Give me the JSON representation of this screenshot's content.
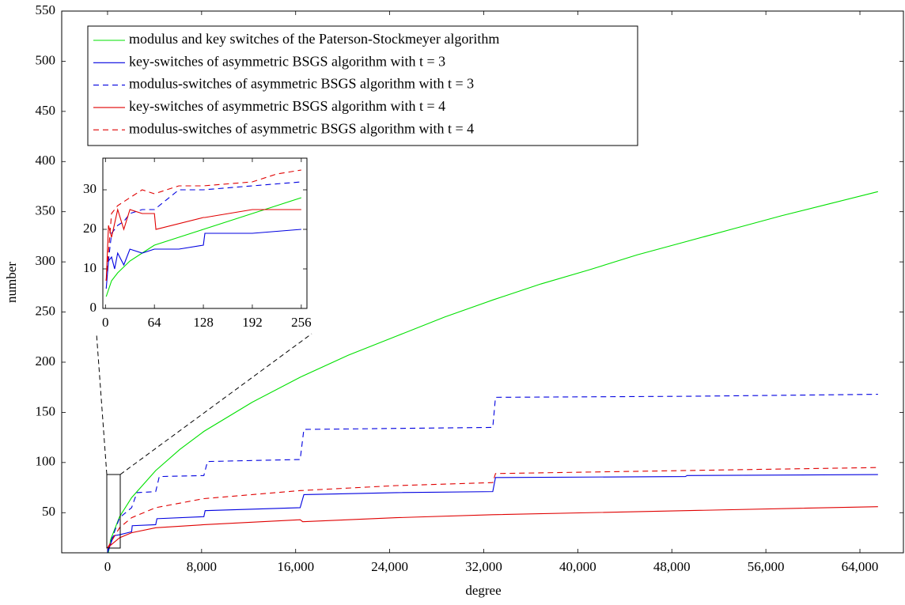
{
  "chart_data": [
    {
      "type": "line",
      "xlabel": "degree",
      "ylabel": "number",
      "xlim": [
        -3900,
        67700
      ],
      "ylim": [
        10,
        550
      ],
      "xticks": [
        0,
        {
          "value": 8000,
          "label": "8,000"
        },
        {
          "value": 16000,
          "label": "16,000"
        },
        {
          "value": 24000,
          "label": "24,000"
        },
        {
          "value": 32000,
          "label": "32,000"
        },
        {
          "value": 40000,
          "label": "40,000"
        },
        {
          "value": 48000,
          "label": "48,000"
        },
        {
          "value": 56000,
          "label": "56,000"
        },
        {
          "value": 64000,
          "label": "64,000"
        }
      ],
      "yticks": [
        50,
        100,
        150,
        200,
        250,
        300,
        350,
        400,
        450,
        500,
        550
      ],
      "legend": "upper left",
      "series": [
        {
          "name": "modulus and key switches of the Paterson-Stockmeyer algorithm",
          "color": "#00e000",
          "dash": false,
          "x": [
            1,
            256,
            1024,
            2048,
            4096,
            6144,
            8192,
            12288,
            16384,
            20480,
            24576,
            28672,
            32768,
            36864,
            40960,
            45056,
            49152,
            53248,
            57344,
            61440,
            65536
          ],
          "values": [
            5,
            23,
            46,
            65,
            92,
            113,
            131,
            160,
            185,
            207,
            226,
            245,
            262,
            278,
            292,
            307,
            320,
            333,
            346,
            358,
            370
          ]
        },
        {
          "name": "key-switches of asymmetric BSGS algorithm with t = 3",
          "color": "#0000e0",
          "dash": false,
          "x": [
            1,
            512,
            1024,
            2048,
            2100,
            4096,
            4200,
            8192,
            8300,
            16384,
            16700,
            24576,
            32768,
            33000,
            49152,
            49300,
            65536
          ],
          "values": [
            10,
            27,
            28,
            31,
            37,
            38,
            44,
            46,
            52,
            55,
            68,
            70,
            71,
            85,
            86,
            87,
            88
          ]
        },
        {
          "name": "modulus-switches of asymmetric BSGS algorithm with t = 3",
          "color": "#0000e0",
          "dash": true,
          "x": [
            1,
            1024,
            2048,
            2500,
            4096,
            4400,
            8192,
            8500,
            16384,
            16700,
            32768,
            33000,
            49152,
            65536
          ],
          "values": [
            12,
            45,
            55,
            70,
            71,
            86,
            87,
            101,
            103,
            133,
            135,
            165,
            166,
            168
          ]
        },
        {
          "name": "key-switches of asymmetric BSGS algorithm with t = 4",
          "color": "#e00000",
          "dash": false,
          "x": [
            1,
            1024,
            2048,
            4096,
            8192,
            16384,
            16600,
            24576,
            32768,
            49152,
            65536
          ],
          "values": [
            15,
            25,
            30,
            35,
            38,
            43,
            41,
            45,
            48,
            52,
            56
          ]
        },
        {
          "name": "modulus-switches of asymmetric BSGS algorithm with t = 4",
          "color": "#e00000",
          "dash": true,
          "x": [
            1,
            1024,
            2048,
            4096,
            8192,
            16384,
            24576,
            32768,
            33000,
            49152,
            65536
          ],
          "values": [
            15,
            35,
            45,
            55,
            64,
            72,
            77,
            80,
            89,
            92,
            95
          ]
        }
      ]
    },
    {
      "type": "line",
      "xlim": [
        -3.4,
        263.4
      ],
      "ylim": [
        0,
        38
      ],
      "xticks": [
        0,
        64,
        128,
        192,
        256
      ],
      "yticks": [
        0,
        10,
        20,
        30
      ],
      "series": [
        {
          "color": "#00e000",
          "dash": false,
          "x": [
            1,
            8,
            16,
            32,
            48,
            64,
            96,
            128,
            160,
            192,
            224,
            256
          ],
          "values": [
            3,
            7,
            9,
            12,
            14,
            16,
            18,
            20,
            22,
            24,
            26,
            28
          ]
        },
        {
          "color": "#0000e0",
          "dash": false,
          "x": [
            1,
            4,
            8,
            12,
            16,
            24,
            32,
            48,
            64,
            96,
            128,
            130,
            192,
            256
          ],
          "values": [
            5,
            12,
            13,
            10,
            14,
            11,
            15,
            14,
            15,
            15,
            16,
            19,
            19,
            20
          ]
        },
        {
          "color": "#0000e0",
          "dash": true,
          "x": [
            1,
            8,
            16,
            24,
            32,
            48,
            64,
            96,
            128,
            192,
            256
          ],
          "values": [
            7,
            19,
            21,
            22,
            24,
            25,
            25,
            30,
            30,
            31,
            32
          ]
        },
        {
          "color": "#e00000",
          "dash": false,
          "x": [
            1,
            4,
            8,
            16,
            24,
            32,
            48,
            64,
            66,
            128,
            130,
            192,
            256
          ],
          "values": [
            7,
            21,
            18,
            25,
            20,
            25,
            24,
            24,
            20,
            23,
            23,
            25,
            25
          ]
        },
        {
          "color": "#e00000",
          "dash": true,
          "x": [
            1,
            8,
            16,
            32,
            48,
            64,
            96,
            128,
            192,
            224,
            256
          ],
          "values": [
            7,
            24,
            26,
            28,
            30,
            29,
            31,
            31,
            32,
            34,
            35
          ]
        }
      ]
    }
  ]
}
